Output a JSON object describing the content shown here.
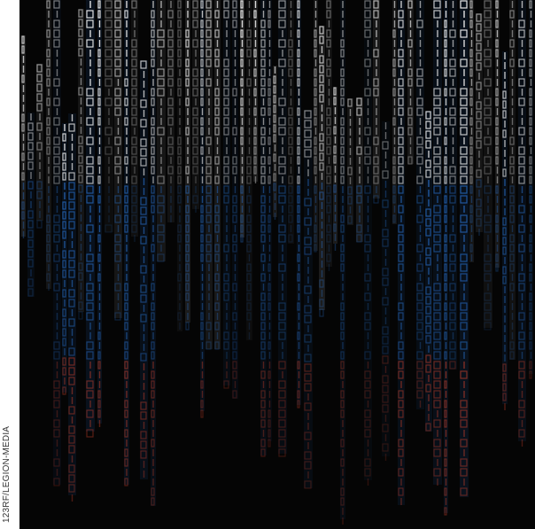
{
  "credit": "123RF/LEGION-MEDIA"
}
